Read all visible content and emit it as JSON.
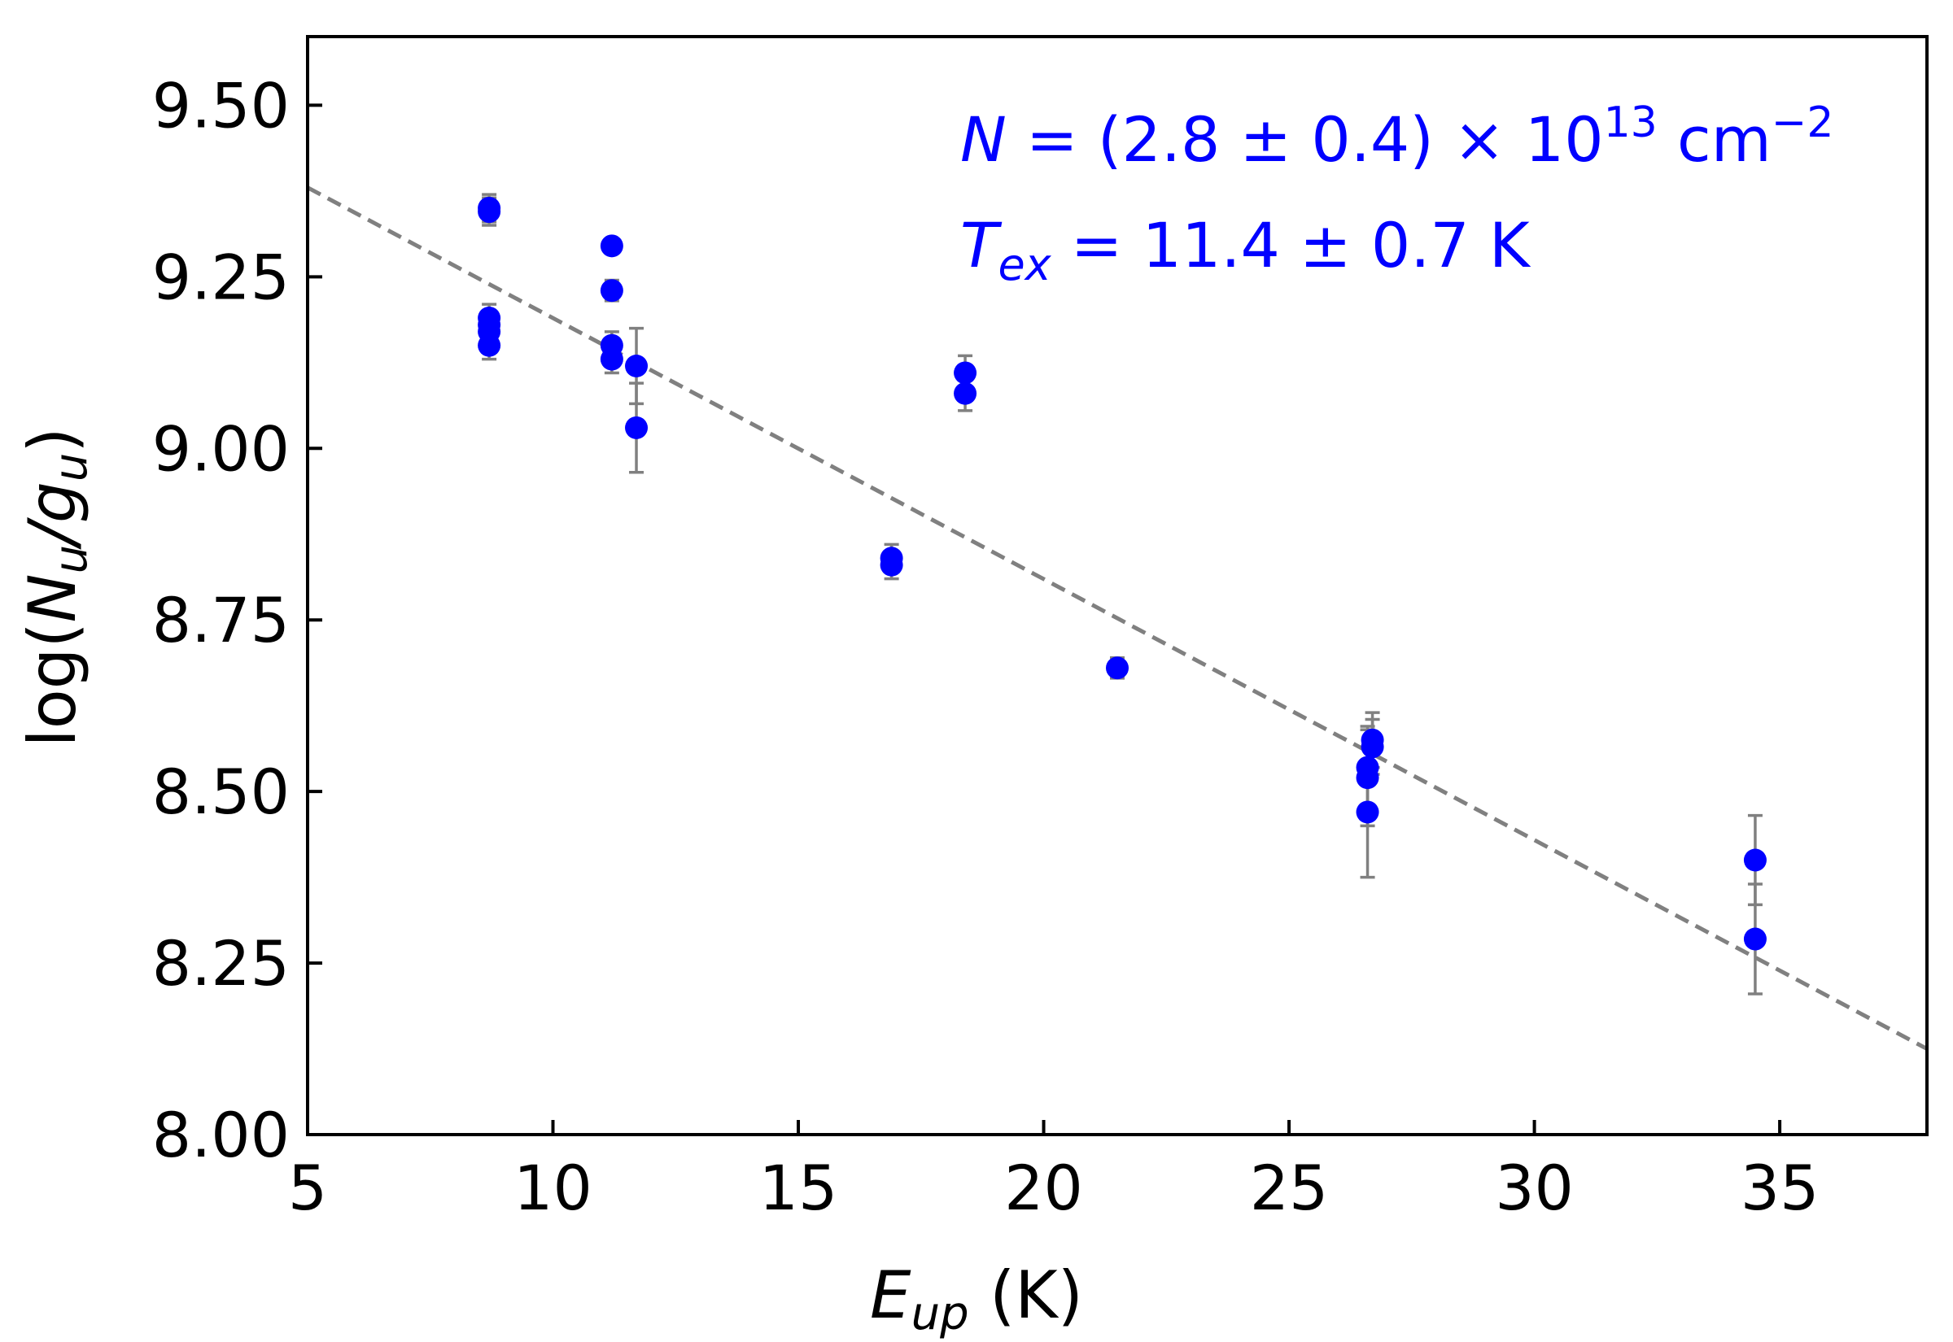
{
  "chart_data": {
    "type": "scatter",
    "title": "",
    "xlabel": {
      "main": "E",
      "sub": "up",
      "unit": " (K)"
    },
    "ylabel": {
      "pre": "log(",
      "n": "N",
      "nsub": "u",
      "slash": "/",
      "g": "g",
      "gsub": "u",
      "post": ")"
    },
    "xlim": [
      5,
      38
    ],
    "ylim": [
      8.0,
      9.6
    ],
    "xticks": [
      5,
      10,
      15,
      20,
      25,
      30,
      35
    ],
    "xtick_labels": [
      "5",
      "10",
      "15",
      "20",
      "25",
      "30",
      "35"
    ],
    "yticks": [
      8.0,
      8.25,
      8.5,
      8.75,
      9.0,
      9.25,
      9.5
    ],
    "ytick_labels": [
      "8.00",
      "8.25",
      "8.50",
      "8.75",
      "9.00",
      "9.25",
      "9.50"
    ],
    "grid": false,
    "colors": {
      "points": "#0000ff",
      "errorbars": "#808080",
      "fit": "#808080",
      "axes": "#000000"
    },
    "series": [
      {
        "name": "data",
        "points": [
          {
            "x": 8.7,
            "y": 9.35,
            "err": 0.02
          },
          {
            "x": 8.7,
            "y": 9.345,
            "err": 0.02
          },
          {
            "x": 8.7,
            "y": 9.19,
            "err": 0.02
          },
          {
            "x": 8.7,
            "y": 9.18,
            "err": 0.02
          },
          {
            "x": 8.7,
            "y": 9.17,
            "err": 0.02
          },
          {
            "x": 8.7,
            "y": 9.15,
            "err": 0.02
          },
          {
            "x": 11.2,
            "y": 9.295,
            "err": 0.01
          },
          {
            "x": 11.2,
            "y": 9.23,
            "err": 0.015
          },
          {
            "x": 11.2,
            "y": 9.15,
            "err": 0.02
          },
          {
            "x": 11.2,
            "y": 9.13,
            "err": 0.02
          },
          {
            "x": 11.7,
            "y": 9.12,
            "err": 0.055
          },
          {
            "x": 11.7,
            "y": 9.03,
            "err": 0.065
          },
          {
            "x": 16.9,
            "y": 8.84,
            "err": 0.02
          },
          {
            "x": 16.9,
            "y": 8.83,
            "err": 0.02
          },
          {
            "x": 18.4,
            "y": 9.11,
            "err": 0.025
          },
          {
            "x": 18.4,
            "y": 9.08,
            "err": 0.025
          },
          {
            "x": 21.5,
            "y": 8.68,
            "err": 0.015
          },
          {
            "x": 26.7,
            "y": 8.575,
            "err": 0.04
          },
          {
            "x": 26.7,
            "y": 8.565,
            "err": 0.04
          },
          {
            "x": 26.6,
            "y": 8.535,
            "err": 0.06
          },
          {
            "x": 26.6,
            "y": 8.52,
            "err": 0.07
          },
          {
            "x": 26.6,
            "y": 8.47,
            "err": 0.095
          },
          {
            "x": 34.5,
            "y": 8.4,
            "err": 0.065
          },
          {
            "x": 34.5,
            "y": 8.285,
            "err": 0.08
          }
        ]
      }
    ],
    "fit_line": {
      "style": "dashed",
      "x": [
        5,
        38
      ],
      "y": [
        9.38,
        8.125
      ]
    },
    "annotations": {
      "line1": {
        "var": "N",
        "text": " = (2.8 ± 0.4) × 10",
        "sup": "13",
        "unit": " cm",
        "unit_sup": "−2"
      },
      "line2": {
        "var": "T",
        "sub": "ex",
        "text": " = 11.4 ± 0.7 K"
      }
    }
  }
}
